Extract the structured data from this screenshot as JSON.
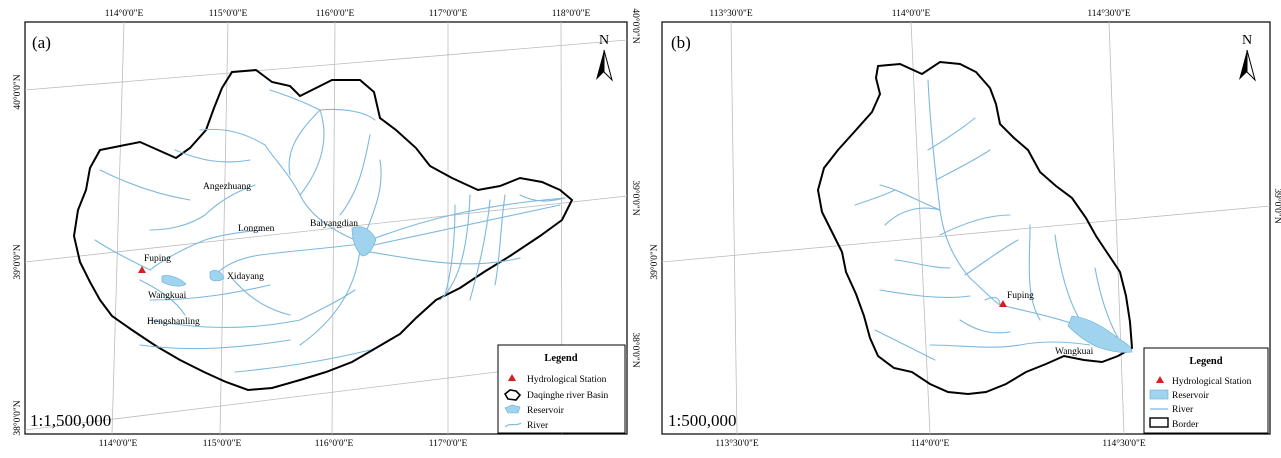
{
  "panel_a": {
    "label": "(a)",
    "scale": "1:1,500,000",
    "north": "N",
    "top_ticks": [
      "114°0'0\"E",
      "115°0'0\"E",
      "116°0'0\"E",
      "117°0'0\"E",
      "118°0'0\"E"
    ],
    "bottom_ticks": [
      "114°0'0\"E",
      "115°0'0\"E",
      "116°0'0\"E",
      "117°0'0\"E"
    ],
    "left_ticks": [
      "40°0'0\"N",
      "39°0'0\"N",
      "38°0'0\"N"
    ],
    "right_ticks": [
      "40°0'0\"N",
      "39°0'0\"N",
      "38°0'0\"N"
    ],
    "places": {
      "angezhuang": "Angezhuang",
      "longmen": "Longmen",
      "baiyangdian": "Baiyangdian",
      "fuping": "Fuping",
      "xidayang": "Xidayang",
      "wangkuai": "Wangkuai",
      "hengshanling": "Hengshanling"
    },
    "legend": {
      "title": "Legend",
      "items": [
        "Hydrological Station",
        "Daqinghe river Basin",
        "Reservoir",
        "River"
      ]
    }
  },
  "panel_b": {
    "label": "(b)",
    "scale": "1:500,000",
    "north": "N",
    "top_ticks": [
      "113°30'0\"E",
      "114°0'0\"E",
      "114°30'0\"E"
    ],
    "bottom_ticks": [
      "113°30'0\"E",
      "114°0'0\"E",
      "114°30'0\"E"
    ],
    "left_ticks": [
      "39°0'0\"N"
    ],
    "right_ticks": [
      "39°0'0\"N"
    ],
    "places": {
      "fuping": "Fuping",
      "wangkuai": "Wangkuai"
    },
    "legend": {
      "title": "Legend",
      "items": [
        "Hydrological Station",
        "Reservoir",
        "River",
        "Border"
      ]
    }
  },
  "colors": {
    "river": "#7db8df",
    "reservoir": "#9fd3ee",
    "station": "#d62020",
    "boundary": "#000000",
    "grid": "#bcbcbc"
  }
}
